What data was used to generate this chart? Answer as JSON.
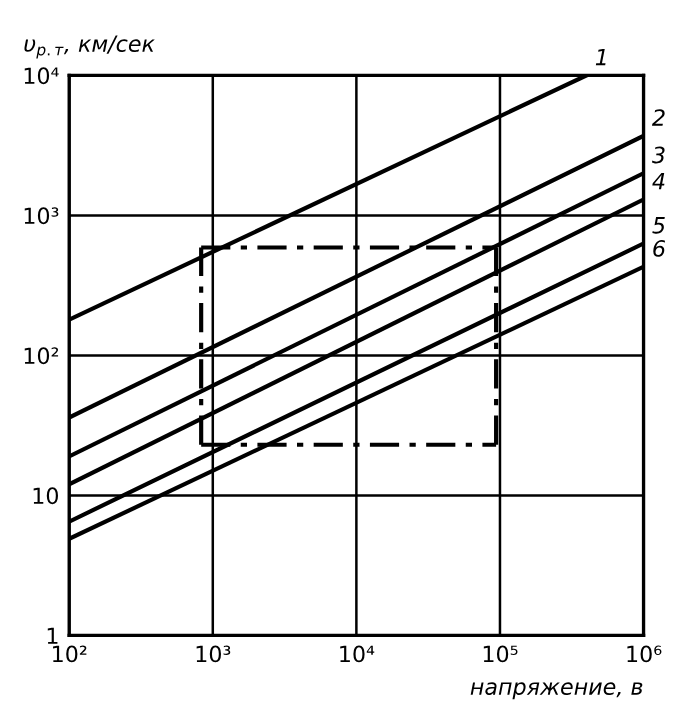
{
  "chart_data": {
    "type": "line",
    "xlabel": "напряжение, в",
    "ylabel": "υ$_{р.т}$, км/сек",
    "log": "xy",
    "grid": true,
    "line_style": "solid",
    "marker": "none",
    "xlim": [
      100,
      1000000
    ],
    "ylim": [
      1,
      10000
    ],
    "xticks": [
      {
        "value": 100,
        "label": "10²"
      },
      {
        "value": 1000,
        "label": "10³"
      },
      {
        "value": 10000,
        "label": "10⁴"
      },
      {
        "value": 100000,
        "label": "10⁵"
      },
      {
        "value": 1000000,
        "label": "10⁶"
      }
    ],
    "yticks": [
      1,
      10,
      {
        "value": 100,
        "label": "10²"
      },
      {
        "value": 1000,
        "label": "10³"
      },
      {
        "value": 10000,
        "label": "10⁴"
      }
    ],
    "series": [
      {
        "name": "1",
        "color": "#000000",
        "x": [
          100,
          400000
        ],
        "values": [
          180,
          10000
        ]
      },
      {
        "name": "2",
        "color": "#000000",
        "x": [
          100,
          1000000
        ],
        "values": [
          36,
          3700
        ]
      },
      {
        "name": "3",
        "color": "#000000",
        "x": [
          100,
          1000000
        ],
        "values": [
          19,
          2000
        ]
      },
      {
        "name": "4",
        "color": "#000000",
        "x": [
          100,
          1000000
        ],
        "values": [
          12,
          1300
        ]
      },
      {
        "name": "5",
        "color": "#000000",
        "x": [
          100,
          1000000
        ],
        "values": [
          6.5,
          630
        ]
      },
      {
        "name": "6",
        "color": "#000000",
        "x": [
          100,
          1000000
        ],
        "values": [
          4.9,
          430
        ]
      },
      {
        "color": "#000000",
        "line_style": "dashdot",
        "x": [
          830,
          94000
        ],
        "values": [
          590,
          590
        ]
      },
      {
        "color": "#000000",
        "line_style": "dashdot",
        "x": [
          830,
          94000
        ],
        "values": [
          23,
          23
        ]
      },
      {
        "color": "#000000",
        "line_style": "dashdot",
        "x": [
          830,
          830
        ],
        "values": [
          23,
          590
        ]
      },
      {
        "color": "#000000",
        "line_style": "dashdot",
        "x": [
          94000,
          94000
        ],
        "values": [
          23,
          590
        ]
      }
    ]
  }
}
